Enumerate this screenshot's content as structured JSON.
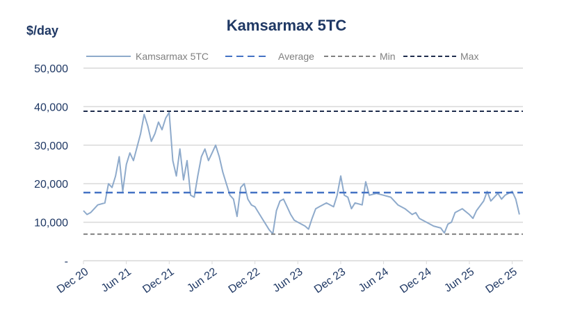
{
  "chart_data": {
    "type": "line",
    "title": "Kamsarmax 5TC",
    "ylabel": "$/day",
    "xlabel": "",
    "ylim": [
      0,
      50000
    ],
    "yticks": [
      0,
      10000,
      20000,
      30000,
      40000,
      50000
    ],
    "ytick_labels": [
      "-",
      "10,000",
      "20,000",
      "30,000",
      "40,000",
      "50,000"
    ],
    "x_unit": "months since Dec 20",
    "xlim": [
      0,
      61.5
    ],
    "xticks": [
      0,
      6,
      12,
      18,
      24,
      30,
      36,
      42,
      48,
      54,
      60
    ],
    "xtick_labels": [
      "Dec 20",
      "Jun 21",
      "Dec 21",
      "Jun 22",
      "Dec 22",
      "Jun 23",
      "Dec 23",
      "Jun 24",
      "Dec 24",
      "Jun 25",
      "Dec 25"
    ],
    "grid": true,
    "legend_position": "top",
    "series": [
      {
        "name": "Kamsarmax 5TC",
        "color": "#8eaacb",
        "style": "solid",
        "x": [
          0,
          0.5,
          1,
          2,
          3,
          3.5,
          4,
          4.5,
          5,
          5.5,
          6,
          6.5,
          7,
          8,
          8.5,
          9,
          9.5,
          10,
          10.5,
          11,
          11.5,
          12,
          12.5,
          13,
          13.5,
          14,
          14.5,
          15,
          15.5,
          16,
          16.5,
          17,
          17.5,
          18,
          18.5,
          19,
          19.5,
          20,
          20.5,
          21,
          21.5,
          22,
          22.5,
          23,
          23.5,
          24,
          25,
          26,
          26.5,
          27,
          27.5,
          28,
          28.5,
          29,
          29.5,
          30,
          31,
          31.5,
          32,
          32.5,
          33,
          34,
          35,
          35.5,
          36,
          36.5,
          37,
          37.5,
          38,
          39,
          39.5,
          40,
          41,
          42,
          43,
          44,
          45,
          46,
          46.5,
          47,
          48,
          49,
          50,
          50.5,
          51,
          51.5,
          52,
          53,
          54,
          54.5,
          55,
          56,
          56.5,
          57,
          58,
          58.5,
          59,
          60,
          60.5,
          61
        ],
        "values": [
          13000,
          12000,
          12500,
          14500,
          15000,
          20000,
          19000,
          22000,
          27000,
          18000,
          25000,
          28000,
          26000,
          33000,
          38000,
          35000,
          31000,
          33000,
          36000,
          34000,
          37000,
          38500,
          26000,
          22000,
          29000,
          21000,
          26000,
          17000,
          16500,
          22000,
          27000,
          29000,
          26000,
          28000,
          30000,
          27000,
          23000,
          20000,
          17000,
          16000,
          11500,
          19000,
          20000,
          16000,
          14500,
          14000,
          11000,
          8000,
          7000,
          13000,
          15500,
          16000,
          14000,
          12000,
          10500,
          10000,
          9000,
          8200,
          11000,
          13500,
          14000,
          15000,
          14000,
          17000,
          22000,
          17000,
          16500,
          13500,
          15000,
          14500,
          20500,
          17000,
          17500,
          17000,
          16500,
          14500,
          13500,
          12000,
          12500,
          11000,
          10000,
          9000,
          8500,
          7200,
          9500,
          10000,
          12500,
          13500,
          12000,
          11000,
          13000,
          15500,
          18000,
          15500,
          17500,
          16000,
          17000,
          18000,
          16000,
          12000
        ]
      },
      {
        "name": "Average",
        "color": "#4472c4",
        "style": "dashed",
        "value": 17700
      },
      {
        "name": "Min",
        "color": "#7f7f7f",
        "style": "dashed",
        "value": 6900
      },
      {
        "name": "Max",
        "color": "#1f2d4d",
        "style": "dashed",
        "value": 38800
      }
    ]
  }
}
